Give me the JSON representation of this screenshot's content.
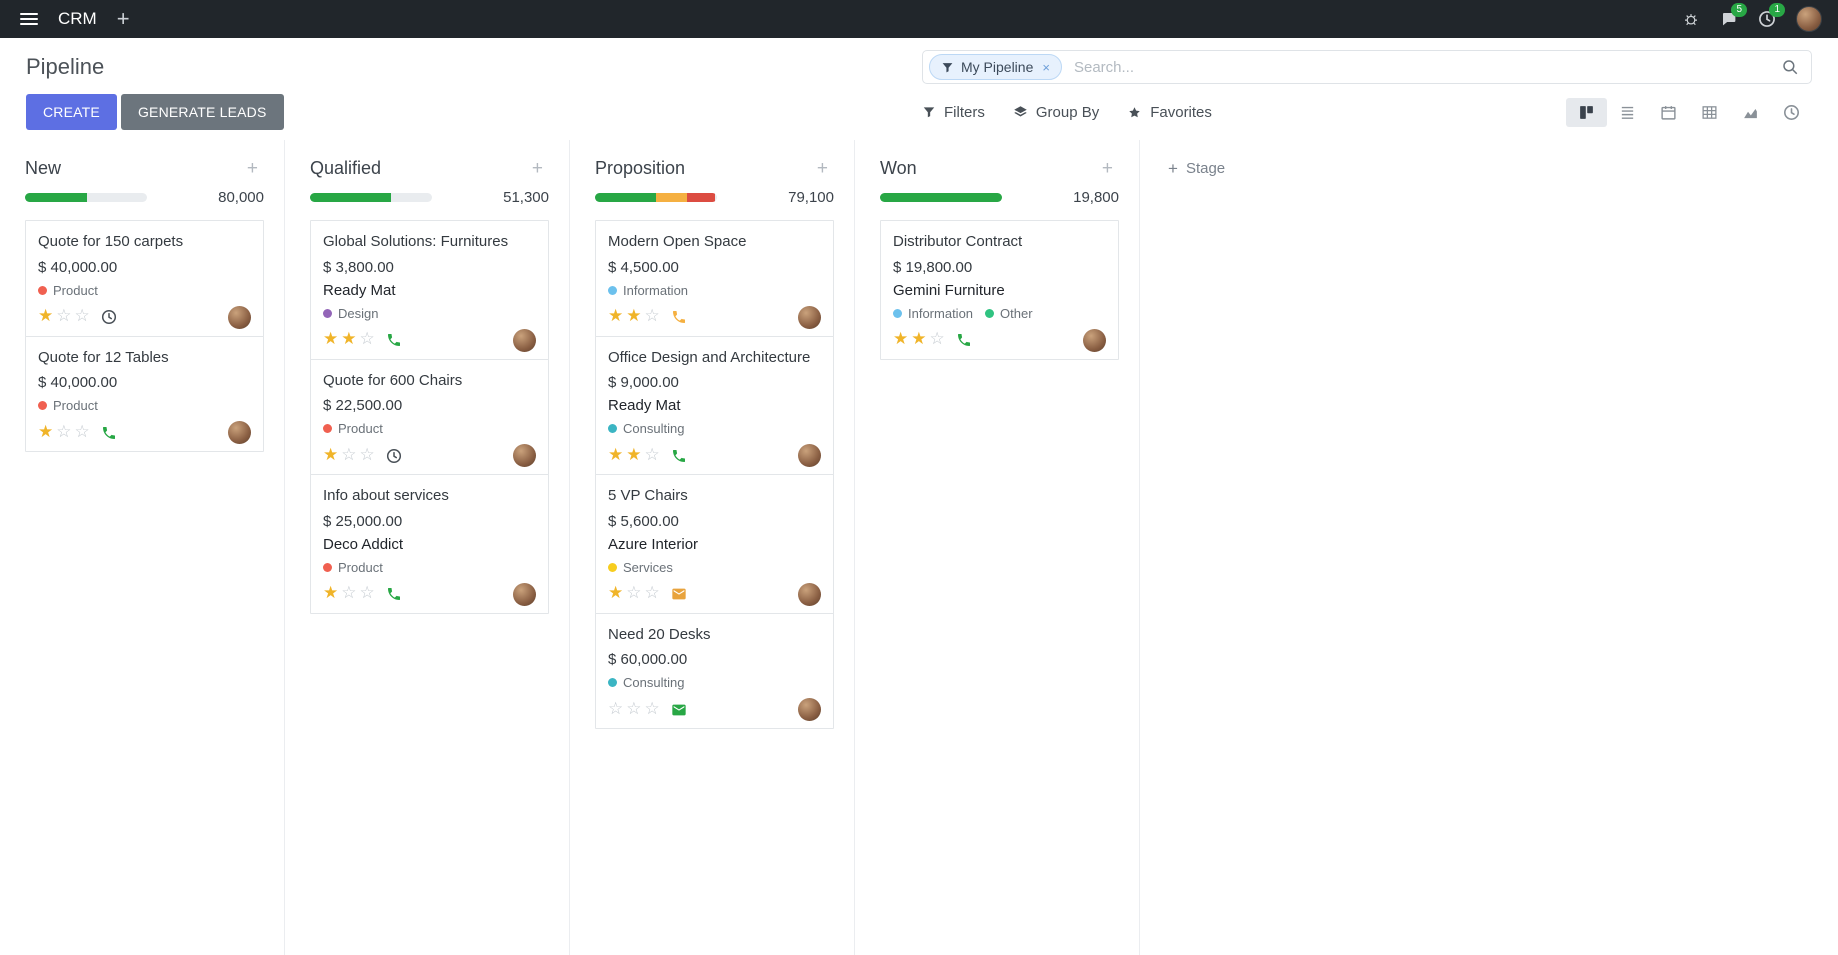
{
  "navbar": {
    "app_name": "CRM",
    "add_label": "+",
    "message_badge": "5",
    "activity_badge": "1"
  },
  "control_panel": {
    "title": "Pipeline",
    "create_label": "CREATE",
    "generate_leads_label": "GENERATE LEADS",
    "filters_label": "Filters",
    "group_by_label": "Group By",
    "favorites_label": "Favorites",
    "search": {
      "facet_label": "My Pipeline",
      "remove_facet": "×",
      "placeholder": "Search..."
    },
    "views": {
      "active": "kanban",
      "options": [
        "kanban",
        "list",
        "calendar",
        "pivot",
        "graph",
        "activity"
      ]
    }
  },
  "board": {
    "add_stage_label": "Stage",
    "add_stage_plus": "+",
    "column_plus": "+",
    "colors": {
      "success": "#28a745",
      "warning": "#f5b041",
      "danger": "#dc4c41",
      "bar_bg": "#e9ecef",
      "star_filled": "#f0b429",
      "accent": "#5d6fe3"
    },
    "columns": [
      {
        "name": "New",
        "total": "80,000",
        "progress": [
          {
            "color": "success",
            "pct": 51
          }
        ],
        "cards": [
          {
            "title": "Quote for 150 carpets",
            "amount": "$ 40,000.00",
            "partner": "",
            "tags": [
              {
                "label": "Product",
                "color": "#f06050"
              }
            ],
            "stars": 1,
            "activity": {
              "icon": "clock",
              "color": "#495057"
            }
          },
          {
            "title": "Quote for 12 Tables",
            "amount": "$ 40,000.00",
            "partner": "",
            "tags": [
              {
                "label": "Product",
                "color": "#f06050"
              }
            ],
            "stars": 1,
            "activity": {
              "icon": "phone",
              "color": "#28a745"
            }
          }
        ]
      },
      {
        "name": "Qualified",
        "total": "51,300",
        "progress": [
          {
            "color": "success",
            "pct": 66
          }
        ],
        "cards": [
          {
            "title": "Global Solutions: Furnitures",
            "amount": "$ 3,800.00",
            "partner": "Ready Mat",
            "tags": [
              {
                "label": "Design",
                "color": "#9365b8"
              }
            ],
            "stars": 2,
            "activity": {
              "icon": "phone",
              "color": "#28a745"
            }
          },
          {
            "title": "Quote for 600 Chairs",
            "amount": "$ 22,500.00",
            "partner": "",
            "tags": [
              {
                "label": "Product",
                "color": "#f06050"
              }
            ],
            "stars": 1,
            "activity": {
              "icon": "clock",
              "color": "#495057"
            }
          },
          {
            "title": "Info about services",
            "amount": "$ 25,000.00",
            "partner": "Deco Addict",
            "tags": [
              {
                "label": "Product",
                "color": "#f06050"
              }
            ],
            "stars": 1,
            "activity": {
              "icon": "phone",
              "color": "#28a745"
            }
          }
        ]
      },
      {
        "name": "Proposition",
        "total": "79,100",
        "progress": [
          {
            "color": "success",
            "pct": 50
          },
          {
            "color": "warning",
            "pct": 25
          },
          {
            "color": "danger",
            "pct": 23
          }
        ],
        "cards": [
          {
            "title": "Modern Open Space",
            "amount": "$ 4,500.00",
            "partner": "",
            "tags": [
              {
                "label": "Information",
                "color": "#6cc1ed"
              }
            ],
            "stars": 2,
            "activity": {
              "icon": "phone",
              "color": "#f5b041"
            }
          },
          {
            "title": "Office Design and Architecture",
            "amount": "$ 9,000.00",
            "partner": "Ready Mat",
            "tags": [
              {
                "label": "Consulting",
                "color": "#3bb5c3"
              }
            ],
            "stars": 2,
            "activity": {
              "icon": "phone",
              "color": "#28a745"
            }
          },
          {
            "title": "5 VP Chairs",
            "amount": "$ 5,600.00",
            "partner": "Azure Interior",
            "tags": [
              {
                "label": "Services",
                "color": "#f7cd1f"
              }
            ],
            "stars": 1,
            "activity": {
              "icon": "envelope",
              "color": "#e8a33d"
            }
          },
          {
            "title": "Need 20 Desks",
            "amount": "$ 60,000.00",
            "partner": "",
            "tags": [
              {
                "label": "Consulting",
                "color": "#3bb5c3"
              }
            ],
            "stars": 0,
            "activity": {
              "icon": "envelope",
              "color": "#28a745"
            }
          }
        ]
      },
      {
        "name": "Won",
        "total": "19,800",
        "progress": [
          {
            "color": "success",
            "pct": 100
          }
        ],
        "cards": [
          {
            "title": "Distributor Contract",
            "amount": "$ 19,800.00",
            "partner": "Gemini Furniture",
            "tags": [
              {
                "label": "Information",
                "color": "#6cc1ed"
              },
              {
                "label": "Other",
                "color": "#30c381"
              }
            ],
            "stars": 2,
            "activity": {
              "icon": "phone",
              "color": "#28a745"
            }
          }
        ]
      }
    ]
  }
}
